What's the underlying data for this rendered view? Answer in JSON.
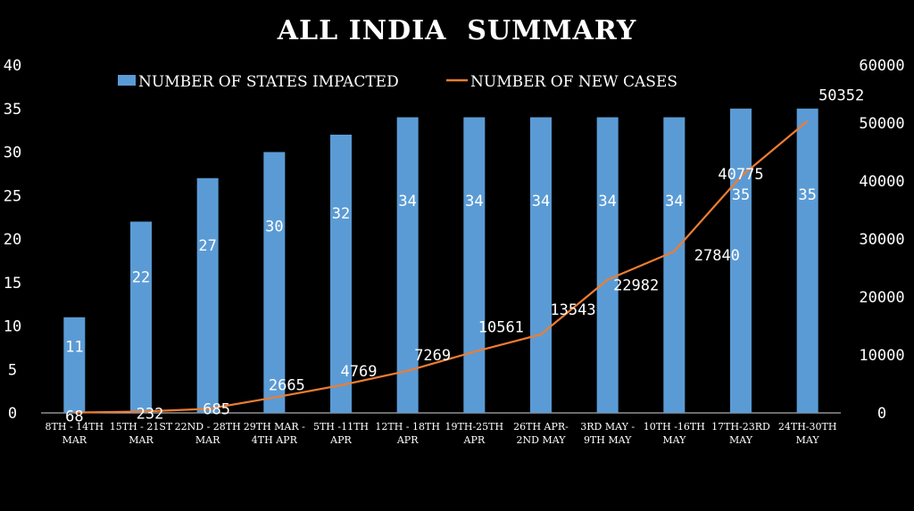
{
  "chart_data": {
    "type": "bar",
    "title": "ALL INDIA  SUMMARY",
    "categories": [
      [
        "8TH - 14TH",
        "MAR"
      ],
      [
        "15TH - 21ST",
        "MAR"
      ],
      [
        "22ND - 28TH",
        "MAR"
      ],
      [
        "29TH MAR -",
        "4TH APR"
      ],
      [
        "5TH -11TH",
        "APR"
      ],
      [
        "12TH - 18TH",
        "APR"
      ],
      [
        "19TH-25TH",
        "APR"
      ],
      [
        "26TH APR-",
        "2ND MAY"
      ],
      [
        "3RD MAY -",
        "9TH MAY"
      ],
      [
        "10TH -16TH",
        "MAY"
      ],
      [
        "17TH-23RD",
        "MAY"
      ],
      [
        "24TH-30TH",
        "MAY"
      ]
    ],
    "series": [
      {
        "name": "NUMBER OF STATES IMPACTED",
        "type": "bar",
        "axis": "left",
        "color": "#5b9bd5",
        "values": [
          11,
          22,
          27,
          30,
          32,
          34,
          34,
          34,
          34,
          34,
          35,
          35
        ]
      },
      {
        "name": "NUMBER OF NEW CASES",
        "type": "line",
        "axis": "right",
        "color": "#ed7d31",
        "values": [
          68,
          232,
          685,
          2665,
          4769,
          7269,
          10561,
          13543,
          22982,
          27840,
          40775,
          50352
        ]
      }
    ],
    "y_left": {
      "ylim": [
        0,
        40
      ],
      "ticks": [
        0,
        5,
        10,
        15,
        20,
        25,
        30,
        35,
        40
      ]
    },
    "y_right": {
      "ylim": [
        0,
        60000
      ],
      "ticks": [
        0,
        10000,
        20000,
        30000,
        40000,
        50000,
        60000
      ]
    },
    "legend": "top",
    "grid": false
  }
}
